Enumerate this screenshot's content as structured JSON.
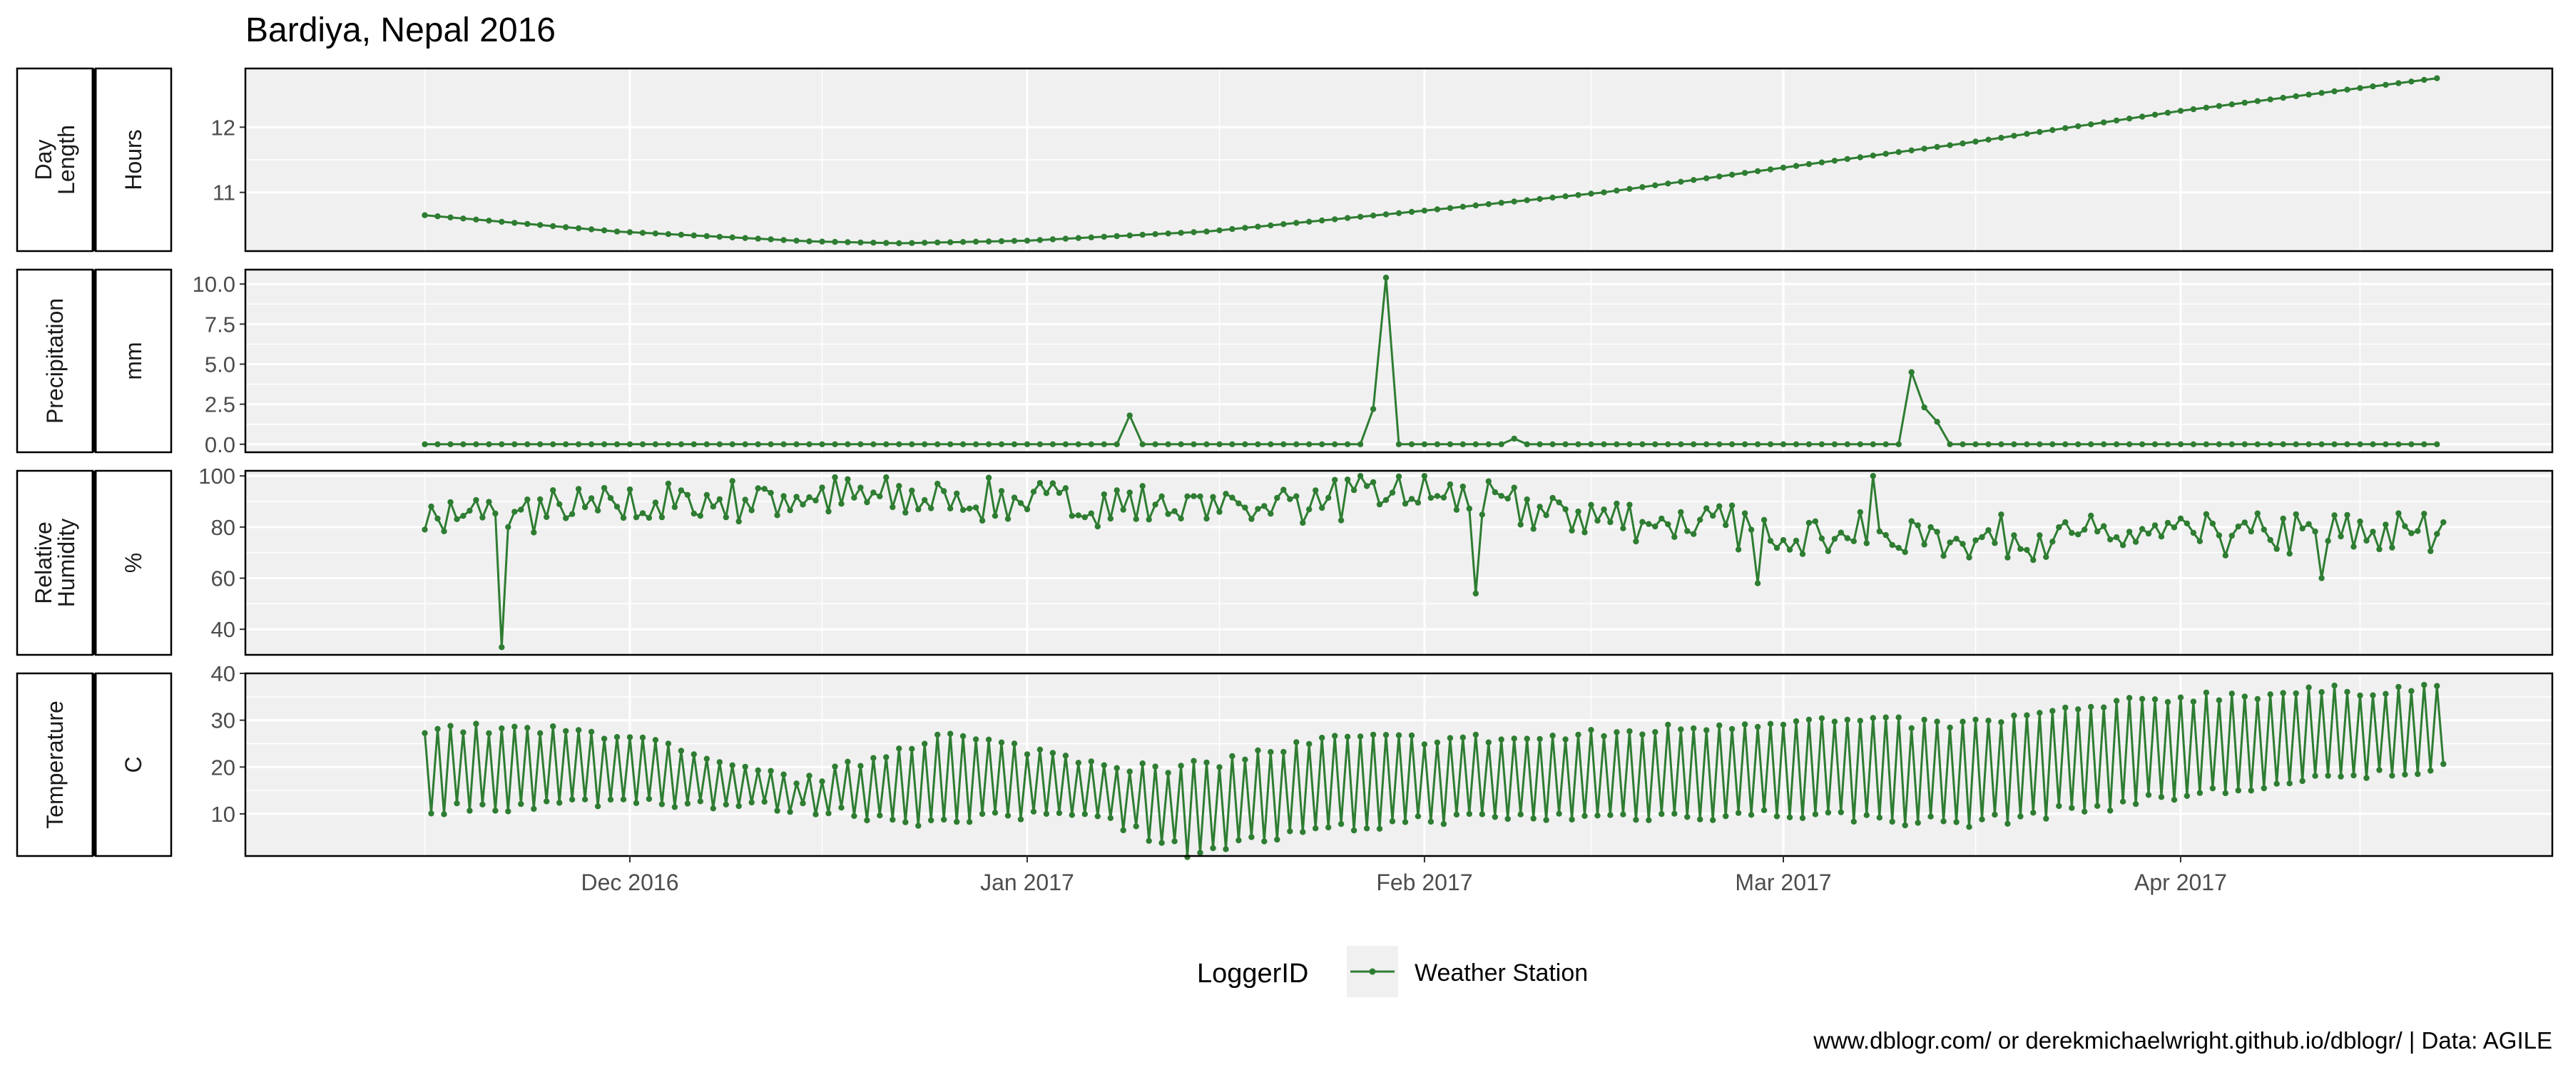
{
  "title": "Bardiya, Nepal 2016",
  "caption": "www.dblogr.com/ or derekmichaelwright.github.io/dblogr/ | Data: AGILE",
  "legend": {
    "title": "LoggerID",
    "entries": [
      "Weather Station"
    ],
    "position": "bottom"
  },
  "colors": {
    "series": "#2e7d32",
    "panel_bg": "#f0f0f0",
    "grid": "#ffffff",
    "text": "#4d4d4d"
  },
  "x_axis": {
    "ticks": [
      "Dec 2016",
      "Jan 2017",
      "Feb 2017",
      "Mar 2017",
      "Apr 2017"
    ],
    "range": [
      "2016-11-15",
      "2017-04-21"
    ]
  },
  "chart_data": [
    {
      "type": "line",
      "strip_labels": [
        "Day\nLength",
        "Hours"
      ],
      "y_ticks": [
        "11",
        "12"
      ],
      "ylim": [
        10.1,
        12.9
      ],
      "grid": true,
      "series": [
        {
          "name": "Weather Station",
          "kind": "daylength",
          "start": "2016-11-15",
          "end": "2017-04-21",
          "anchors": [
            [
              "2016-11-15",
              10.65
            ],
            [
              "2016-11-30",
              10.4
            ],
            [
              "2016-12-15",
              10.25
            ],
            [
              "2016-12-22",
              10.22
            ],
            [
              "2017-01-01",
              10.26
            ],
            [
              "2017-01-15",
              10.4
            ],
            [
              "2017-02-01",
              10.72
            ],
            [
              "2017-02-15",
              11.0
            ],
            [
              "2017-03-01",
              11.38
            ],
            [
              "2017-03-15",
              11.75
            ],
            [
              "2017-04-01",
              12.25
            ],
            [
              "2017-04-21",
              12.75
            ]
          ]
        }
      ]
    },
    {
      "type": "line",
      "strip_labels": [
        "Precipitation",
        "mm"
      ],
      "y_ticks": [
        "0.0",
        "2.5",
        "5.0",
        "7.5",
        "10.0"
      ],
      "ylim": [
        -0.5,
        10.9
      ],
      "grid": true,
      "series": [
        {
          "name": "Weather Station",
          "kind": "precip",
          "start": "2016-11-15",
          "end": "2017-04-21",
          "events": [
            [
              "2017-01-09",
              1.8
            ],
            [
              "2017-01-28",
              2.2
            ],
            [
              "2017-01-29",
              10.4
            ],
            [
              "2017-02-08",
              0.35
            ],
            [
              "2017-03-11",
              4.5
            ],
            [
              "2017-03-12",
              2.3
            ],
            [
              "2017-03-13",
              1.4
            ]
          ]
        }
      ]
    },
    {
      "type": "line",
      "strip_labels": [
        "Relative\nHumidity",
        "%"
      ],
      "y_ticks": [
        "40",
        "60",
        "80",
        "100"
      ],
      "ylim": [
        30,
        102
      ],
      "grid": true,
      "series": [
        {
          "name": "Weather Station",
          "kind": "humidity",
          "start": "2016-11-15",
          "end": "2017-04-21",
          "level": [
            [
              "2016-11-15",
              86
            ],
            [
              "2016-12-01",
              90
            ],
            [
              "2016-12-15",
              94
            ],
            [
              "2017-01-01",
              92
            ],
            [
              "2017-01-15",
              90
            ],
            [
              "2017-02-01",
              95
            ],
            [
              "2017-02-10",
              88
            ],
            [
              "2017-02-25",
              82
            ],
            [
              "2017-03-10",
              78
            ],
            [
              "2017-03-25",
              78
            ],
            [
              "2017-04-21",
              80
            ]
          ],
          "spikes": [
            [
              "2016-11-21",
              33
            ],
            [
              "2017-02-05",
              54
            ],
            [
              "2017-02-27",
              58
            ],
            [
              "2017-04-12",
              60
            ],
            [
              "2017-03-08",
              100
            ]
          ]
        }
      ]
    },
    {
      "type": "line",
      "strip_labels": [
        "Temperature",
        "C"
      ],
      "y_ticks": [
        "10",
        "20",
        "30",
        "40"
      ],
      "ylim": [
        1,
        40
      ],
      "grid": true,
      "series": [
        {
          "name": "Weather Station",
          "kind": "temperature",
          "start": "2016-11-15",
          "end": "2017-04-21",
          "high": [
            [
              "2016-11-15",
              28.5
            ],
            [
              "2016-12-01",
              27
            ],
            [
              "2016-12-08",
              20
            ],
            [
              "2016-12-15",
              17
            ],
            [
              "2016-12-25",
              27
            ],
            [
              "2017-01-05",
              22
            ],
            [
              "2017-01-12",
              19
            ],
            [
              "2017-01-25",
              26
            ],
            [
              "2017-02-10",
              26
            ],
            [
              "2017-03-01",
              30
            ],
            [
              "2017-03-15",
              29
            ],
            [
              "2017-04-01",
              35
            ],
            [
              "2017-04-21",
              37
            ]
          ],
          "low": [
            [
              "2016-11-15",
              11
            ],
            [
              "2016-12-01",
              13
            ],
            [
              "2016-12-15",
              11
            ],
            [
              "2016-12-25",
              8
            ],
            [
              "2017-01-05",
              11
            ],
            [
              "2017-01-13",
              2
            ],
            [
              "2017-01-20",
              5
            ],
            [
              "2017-02-01",
              9
            ],
            [
              "2017-03-01",
              10
            ],
            [
              "2017-03-15",
              8
            ],
            [
              "2017-04-01",
              14
            ],
            [
              "2017-04-21",
              20
            ]
          ]
        }
      ]
    }
  ]
}
